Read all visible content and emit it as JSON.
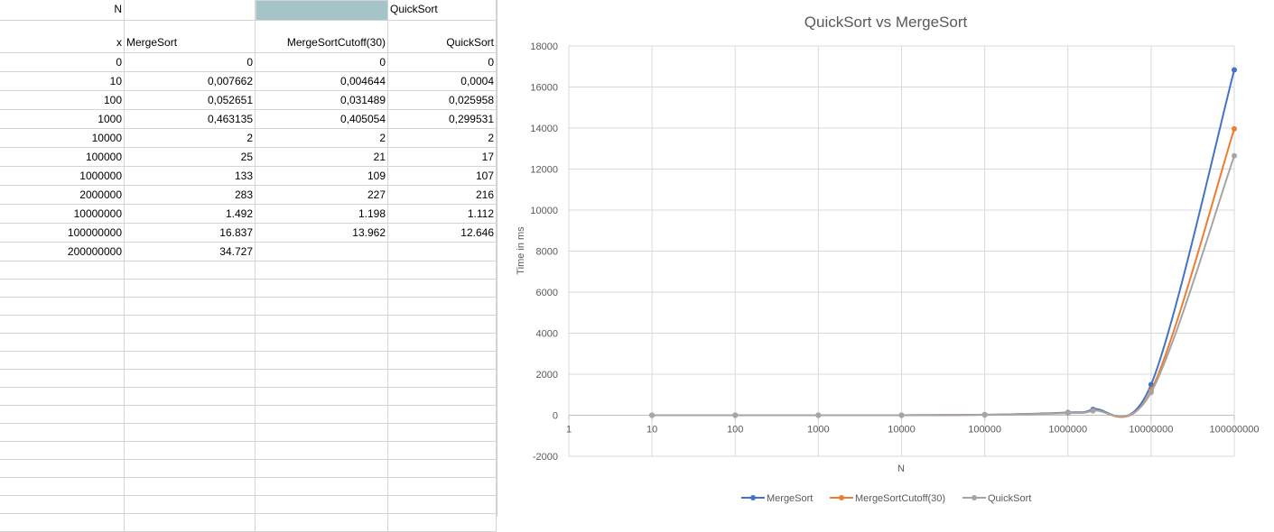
{
  "sheet": {
    "row1": {
      "a": "N",
      "d": "QuickSort"
    },
    "header": {
      "a": "x",
      "b": "MergeSort",
      "c": "MergeSortCutoff(30)",
      "d": "QuickSort"
    },
    "rows": [
      [
        "0",
        "0",
        "0",
        "0"
      ],
      [
        "10",
        "0,007662",
        "0,004644",
        "0,0004"
      ],
      [
        "100",
        "0,052651",
        "0,031489",
        "0,025958"
      ],
      [
        "1000",
        "0,463135",
        "0,405054",
        "0,299531"
      ],
      [
        "10000",
        "2",
        "2",
        "2"
      ],
      [
        "100000",
        "25",
        "21",
        "17"
      ],
      [
        "1000000",
        "133",
        "109",
        "107"
      ],
      [
        "2000000",
        "283",
        "227",
        "216"
      ],
      [
        "10000000",
        "1.492",
        "1.198",
        "1.112"
      ],
      [
        "100000000",
        "16.837",
        "13.962",
        "12.646"
      ],
      [
        "200000000",
        "34.727",
        "",
        ""
      ]
    ],
    "selected_cell_color": "#a5c4c8"
  },
  "chart_data": {
    "type": "scatter",
    "title": "QuickSort vs MergeSort",
    "xlabel": "N",
    "ylabel": "Time in ms",
    "x_scale": "log",
    "xlim": [
      1,
      100000000
    ],
    "ylim": [
      -2000,
      18000
    ],
    "x_ticks": [
      "1",
      "10",
      "100",
      "1000",
      "10000",
      "100000",
      "1000000",
      "10000000",
      "100000000"
    ],
    "y_ticks": [
      "-2000",
      "0",
      "2000",
      "4000",
      "6000",
      "8000",
      "10000",
      "12000",
      "14000",
      "16000",
      "18000"
    ],
    "grid": true,
    "legend_position": "bottom",
    "series": [
      {
        "name": "MergeSort",
        "color": "#4472c4",
        "x": [
          10,
          100,
          1000,
          10000,
          100000,
          1000000,
          2000000,
          10000000,
          100000000
        ],
        "y": [
          0.007662,
          0.052651,
          0.463135,
          2,
          25,
          133,
          283,
          1492,
          16837
        ]
      },
      {
        "name": "MergeSortCutoff(30)",
        "color": "#ed7d31",
        "x": [
          10,
          100,
          1000,
          10000,
          100000,
          1000000,
          2000000,
          10000000,
          100000000
        ],
        "y": [
          0.004644,
          0.031489,
          0.405054,
          2,
          21,
          109,
          227,
          1198,
          13962
        ]
      },
      {
        "name": "QuickSort",
        "color": "#a5a5a5",
        "x": [
          10,
          100,
          1000,
          10000,
          100000,
          1000000,
          2000000,
          10000000,
          100000000
        ],
        "y": [
          0.0004,
          0.025958,
          0.299531,
          2,
          17,
          107,
          216,
          1112,
          12646
        ]
      }
    ]
  }
}
